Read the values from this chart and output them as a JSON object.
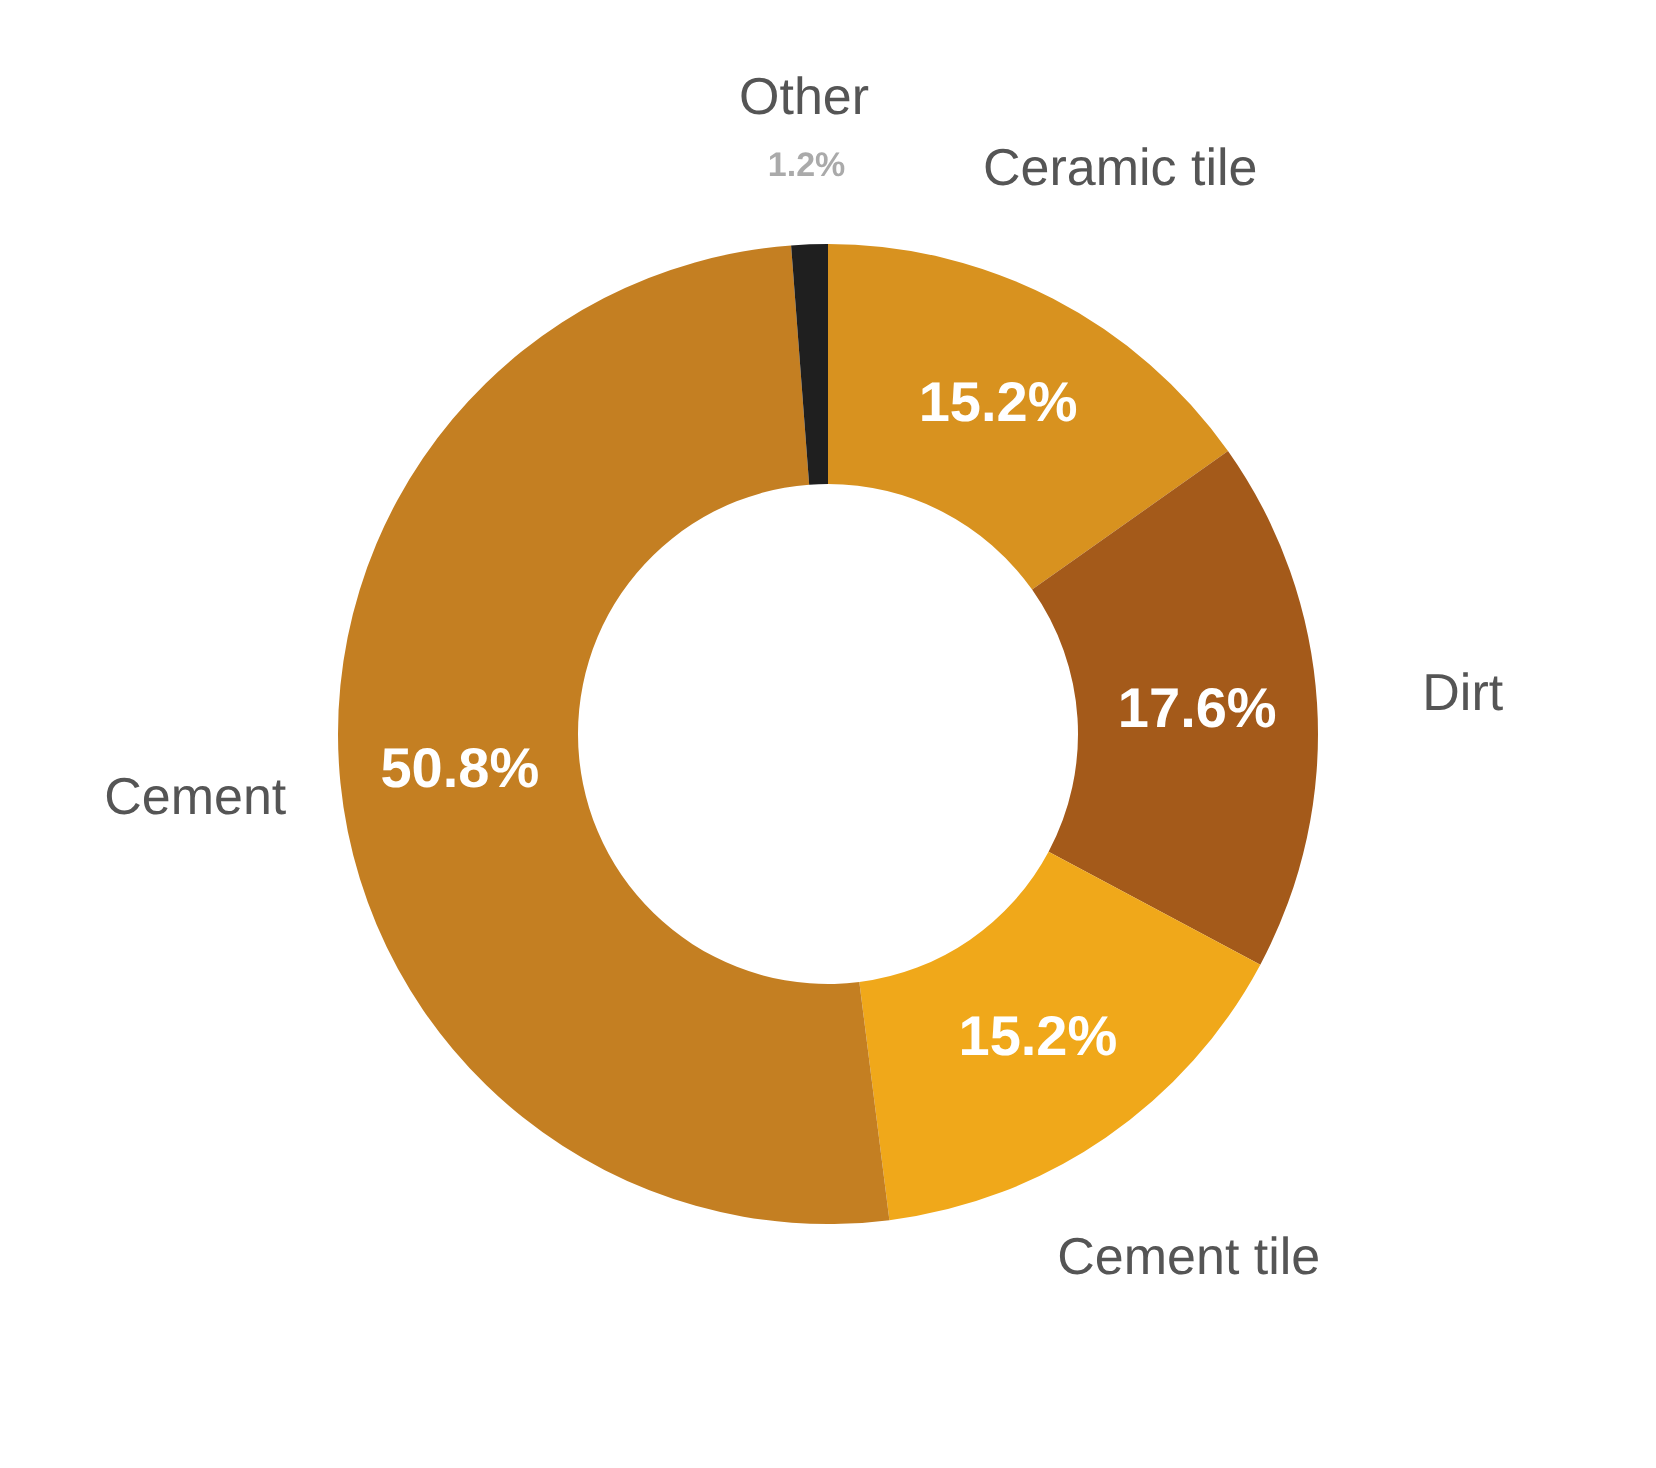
{
  "chart_data": {
    "type": "donut",
    "categories": [
      "Ceramic tile",
      "Dirt",
      "Cement tile",
      "Cement",
      "Other"
    ],
    "values": [
      15.2,
      17.6,
      15.2,
      50.8,
      1.2
    ],
    "colors": [
      "#d8921f",
      "#a45a1a",
      "#f0a81a",
      "#c47f22",
      "#1f1f1f"
    ],
    "value_labels": [
      "15.2%",
      "17.6%",
      "15.2%",
      "50.8%",
      "1.2%"
    ]
  }
}
